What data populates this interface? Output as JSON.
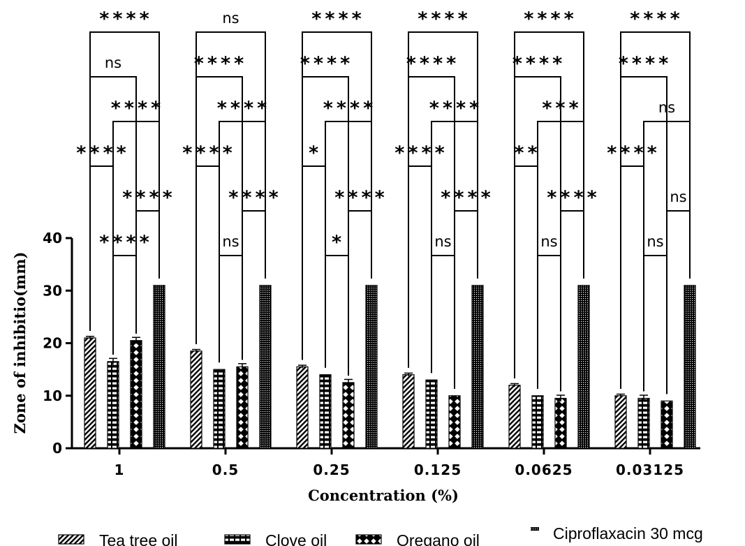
{
  "chart_data": {
    "type": "bar",
    "xlabel": "Concentration (%)",
    "ylabel": "Zone of inhibitio(mm)",
    "ylim": [
      0,
      40
    ],
    "yticks": [
      0,
      10,
      20,
      30,
      40
    ],
    "categories": [
      "1",
      "0.5",
      "0.25",
      "0.125",
      "0.0625",
      "0.03125"
    ],
    "series": [
      {
        "name": "Tea tree oil",
        "values": [
          21,
          18.5,
          15.5,
          14,
          12,
          10
        ],
        "errors": [
          0.3,
          0.3,
          0.3,
          0.3,
          0.3,
          0.3
        ]
      },
      {
        "name": "Clove oil",
        "values": [
          16.5,
          15,
          14,
          13,
          10,
          9.5
        ],
        "errors": [
          0.6,
          0,
          0,
          0,
          0,
          0.6
        ]
      },
      {
        "name": "Oregano oil",
        "values": [
          20.5,
          15.5,
          12.5,
          10,
          9.5,
          9
        ],
        "errors": [
          0.6,
          0.6,
          0.6,
          0,
          0.6,
          0
        ]
      },
      {
        "name": "Ciproflaxacin 30 mcg",
        "values": [
          31,
          31,
          31,
          31,
          31,
          31
        ],
        "errors": [
          0,
          0,
          0,
          0,
          0,
          0
        ]
      }
    ],
    "legend_position": "bottom",
    "significance": [
      [
        "****",
        "ns",
        "****",
        "****",
        "****",
        "****"
      ],
      [
        "ns",
        "****",
        "****",
        "****",
        "****",
        "****"
      ],
      [
        "****",
        "****",
        "****",
        "****",
        "***",
        "ns"
      ],
      [
        "****",
        "****",
        "*",
        "****",
        "**",
        "****"
      ],
      [
        "****",
        "****",
        "****",
        "****",
        "****",
        "ns"
      ],
      [
        "****",
        "ns",
        "*",
        "ns",
        "ns",
        "ns"
      ]
    ]
  }
}
